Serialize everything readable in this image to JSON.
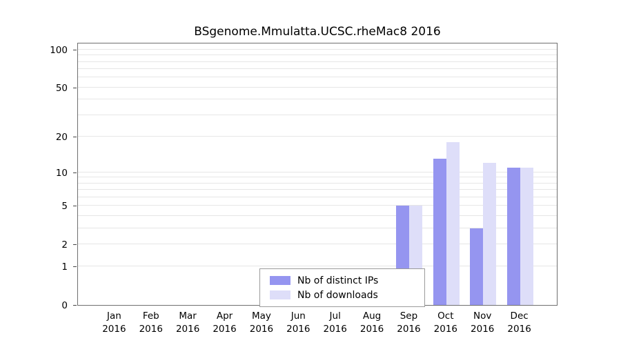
{
  "title": "BSgenome.Mmulatta.UCSC.rheMac8 2016",
  "chart_data": {
    "type": "bar",
    "title": "BSgenome.Mmulatta.UCSC.rheMac8 2016",
    "xlabel": "",
    "ylabel": "",
    "categories": [
      "Jan",
      "Feb",
      "Mar",
      "Apr",
      "May",
      "Jun",
      "Jul",
      "Aug",
      "Sep",
      "Oct",
      "Nov",
      "Dec"
    ],
    "category_year": "2016",
    "series": [
      {
        "name": "Nb of distinct IPs",
        "color": "#9595f0",
        "values": [
          0,
          0,
          0,
          0,
          0,
          0,
          0,
          0,
          5,
          13,
          3,
          11
        ]
      },
      {
        "name": "Nb of downloads",
        "color": "#dedef9",
        "values": [
          0,
          0,
          0,
          0,
          0,
          0,
          0,
          0,
          5,
          18,
          12,
          11
        ]
      }
    ],
    "y_ticks": [
      0,
      1,
      2,
      5,
      10,
      20,
      50,
      100
    ],
    "grid_values": [
      1,
      2,
      3,
      4,
      5,
      6,
      7,
      8,
      9,
      10,
      20,
      30,
      40,
      50,
      60,
      70,
      80,
      90,
      100
    ],
    "y_scale": "log1p",
    "ylim": [
      0,
      100
    ],
    "grid": true,
    "legend_position": "bottom-center"
  }
}
